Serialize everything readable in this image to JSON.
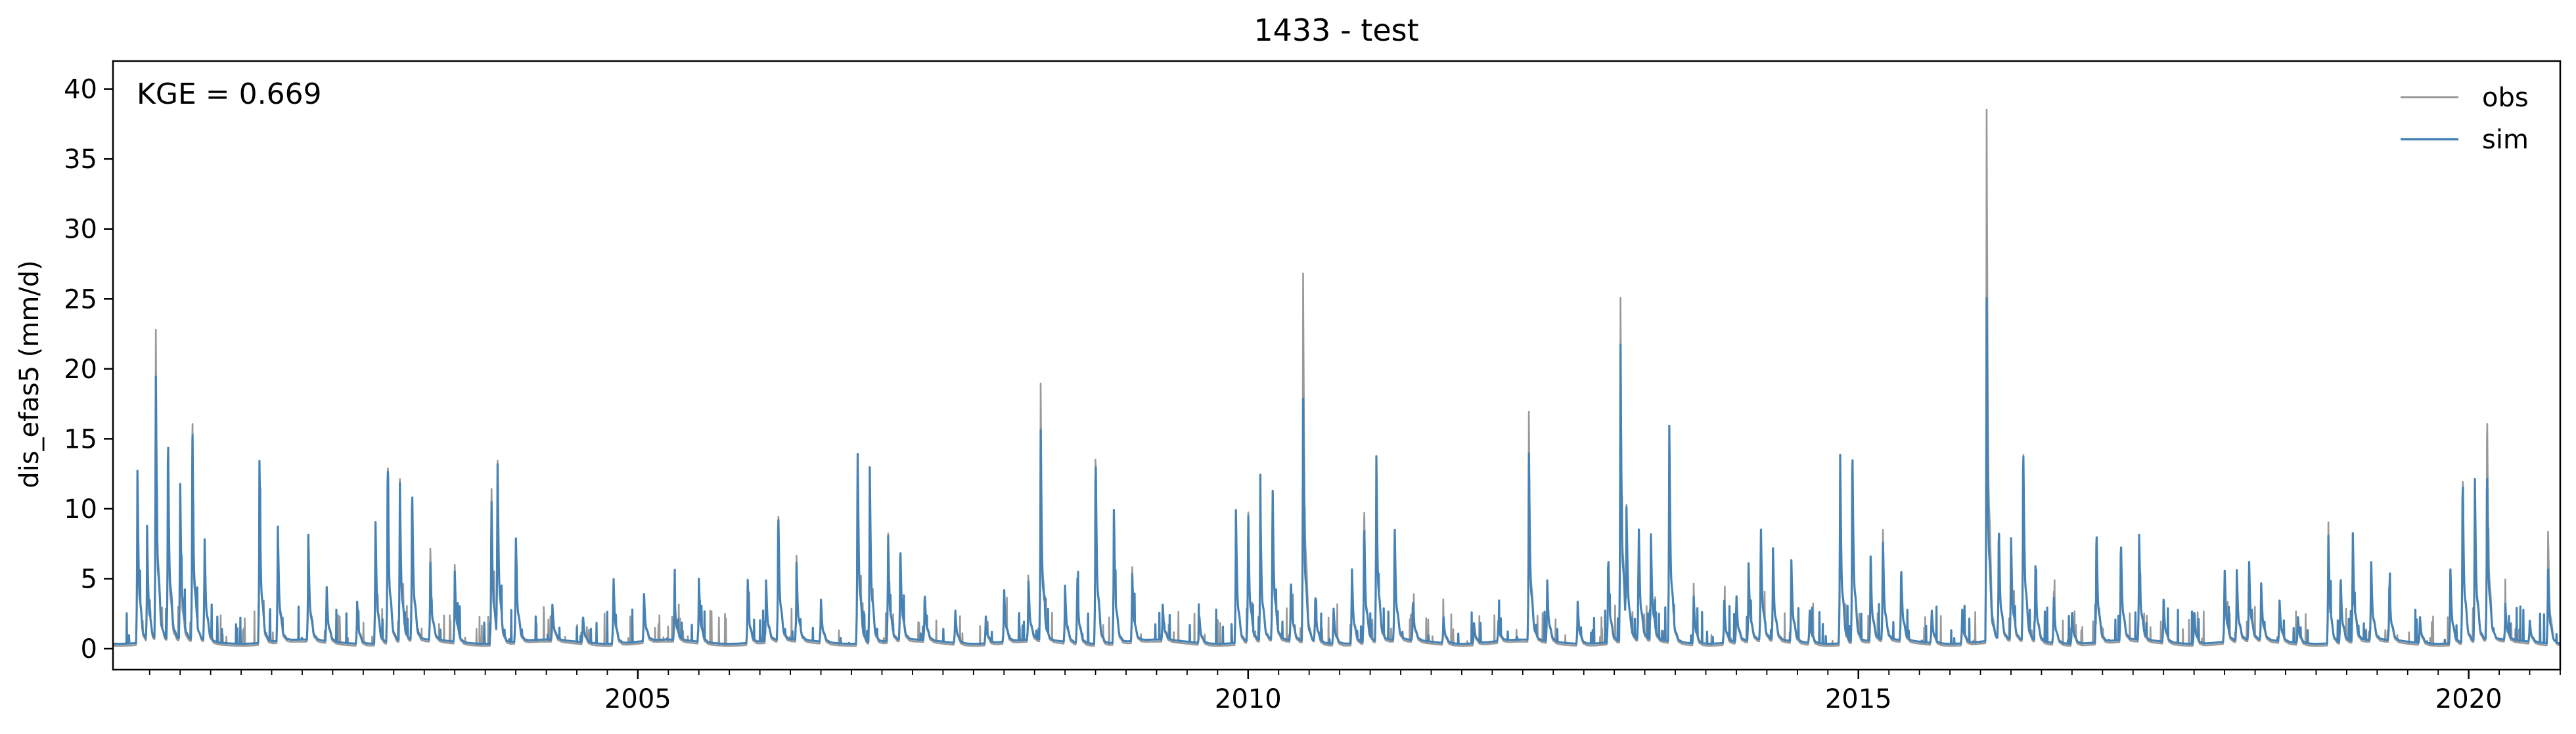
{
  "chart_data": {
    "type": "line",
    "title": "1433 - test",
    "xlabel": "",
    "ylabel": "dis_efas5 (mm/d)",
    "annotation": "KGE = 0.669",
    "legend_placement": "top-right",
    "grid": false,
    "xlim": [
      2000.7,
      2020.75
    ],
    "ylim": [
      -1.5,
      42
    ],
    "x_ticks": [
      2005,
      2010,
      2015,
      2020
    ],
    "x_tick_labels": [
      "2005",
      "2010",
      "2015",
      "2020"
    ],
    "y_ticks": [
      0,
      5,
      10,
      15,
      20,
      25,
      30,
      35,
      40
    ],
    "y_tick_labels": [
      "0",
      "5",
      "10",
      "15",
      "20",
      "25",
      "30",
      "35",
      "40"
    ],
    "base_flow": 0.5,
    "series": [
      {
        "name": "obs",
        "color": "#999999",
        "peaks": [
          [
            2000.9,
            12.5
          ],
          [
            2000.98,
            8
          ],
          [
            2001.05,
            23.5
          ],
          [
            2001.15,
            13
          ],
          [
            2001.25,
            9
          ],
          [
            2001.35,
            18
          ],
          [
            2001.45,
            8
          ],
          [
            2001.9,
            13.2
          ],
          [
            2002.05,
            8.5
          ],
          [
            2002.3,
            7.5
          ],
          [
            2002.45,
            4.5
          ],
          [
            2002.7,
            3.5
          ],
          [
            2002.85,
            9
          ],
          [
            2002.95,
            14.5
          ],
          [
            2003.05,
            12.5
          ],
          [
            2003.15,
            11.5
          ],
          [
            2003.3,
            7
          ],
          [
            2003.5,
            6
          ],
          [
            2003.8,
            12.5
          ],
          [
            2003.85,
            13.5
          ],
          [
            2004.0,
            8.5
          ],
          [
            2004.3,
            3
          ],
          [
            2004.55,
            2.5
          ],
          [
            2004.8,
            5.5
          ],
          [
            2005.05,
            4
          ],
          [
            2005.3,
            4
          ],
          [
            2005.5,
            5
          ],
          [
            2005.9,
            5
          ],
          [
            2006.05,
            5
          ],
          [
            2006.15,
            10.5
          ],
          [
            2006.3,
            6.5
          ],
          [
            2006.5,
            3.5
          ],
          [
            2006.8,
            15
          ],
          [
            2006.9,
            13
          ],
          [
            2007.05,
            8.5
          ],
          [
            2007.15,
            7
          ],
          [
            2007.35,
            4
          ],
          [
            2007.6,
            3
          ],
          [
            2007.85,
            2.5
          ],
          [
            2008.0,
            4.5
          ],
          [
            2008.2,
            5
          ],
          [
            2008.3,
            18.8
          ],
          [
            2008.5,
            4.5
          ],
          [
            2008.6,
            5.5
          ],
          [
            2008.75,
            14.5
          ],
          [
            2008.9,
            10
          ],
          [
            2009.05,
            6
          ],
          [
            2009.3,
            3
          ],
          [
            2009.6,
            2.5
          ],
          [
            2009.9,
            10
          ],
          [
            2010.0,
            10.5
          ],
          [
            2010.1,
            11
          ],
          [
            2010.2,
            12
          ],
          [
            2010.35,
            5
          ],
          [
            2010.45,
            27.8
          ],
          [
            2010.55,
            4
          ],
          [
            2010.7,
            3
          ],
          [
            2010.85,
            6
          ],
          [
            2010.95,
            11
          ],
          [
            2011.05,
            14
          ],
          [
            2011.2,
            9
          ],
          [
            2011.35,
            3.5
          ],
          [
            2011.6,
            2.5
          ],
          [
            2011.85,
            2
          ],
          [
            2012.05,
            2
          ],
          [
            2012.3,
            16.8
          ],
          [
            2012.45,
            5
          ],
          [
            2012.7,
            3.5
          ],
          [
            2012.95,
            7
          ],
          [
            2013.05,
            26
          ],
          [
            2013.1,
            9
          ],
          [
            2013.2,
            9
          ],
          [
            2013.3,
            8
          ],
          [
            2013.45,
            16.5
          ],
          [
            2013.65,
            4
          ],
          [
            2013.9,
            3.5
          ],
          [
            2014.0,
            4
          ],
          [
            2014.1,
            6
          ],
          [
            2014.2,
            9
          ],
          [
            2014.3,
            7
          ],
          [
            2014.45,
            6.5
          ],
          [
            2014.6,
            3
          ],
          [
            2014.85,
            14
          ],
          [
            2014.95,
            15
          ],
          [
            2015.1,
            6.5
          ],
          [
            2015.2,
            9
          ],
          [
            2015.35,
            6
          ],
          [
            2015.6,
            3
          ],
          [
            2015.85,
            3
          ],
          [
            2016.05,
            40
          ],
          [
            2016.15,
            9
          ],
          [
            2016.25,
            8
          ],
          [
            2016.35,
            15.5
          ],
          [
            2016.45,
            6
          ],
          [
            2016.6,
            4.5
          ],
          [
            2016.75,
            3
          ],
          [
            2016.95,
            9
          ],
          [
            2017.15,
            8
          ],
          [
            2017.3,
            8
          ],
          [
            2017.5,
            3.5
          ],
          [
            2017.75,
            3
          ],
          [
            2018.0,
            6
          ],
          [
            2018.1,
            5.5
          ],
          [
            2018.2,
            6.5
          ],
          [
            2018.3,
            4.5
          ],
          [
            2018.45,
            3.5
          ],
          [
            2018.6,
            2.5
          ],
          [
            2018.85,
            9.5
          ],
          [
            2018.95,
            5.5
          ],
          [
            2019.05,
            8.5
          ],
          [
            2019.2,
            6.5
          ],
          [
            2019.35,
            5
          ],
          [
            2019.6,
            2.5
          ],
          [
            2019.85,
            6
          ],
          [
            2019.95,
            13.5
          ],
          [
            2020.05,
            12
          ],
          [
            2020.15,
            18
          ],
          [
            2020.3,
            3
          ],
          [
            2020.5,
            2
          ],
          [
            2020.65,
            8.8
          ]
        ]
      },
      {
        "name": "sim",
        "color": "#4682b4",
        "peaks": [
          [
            2000.9,
            12.8
          ],
          [
            2000.98,
            8
          ],
          [
            2001.05,
            20
          ],
          [
            2001.15,
            16
          ],
          [
            2001.25,
            12
          ],
          [
            2001.35,
            15
          ],
          [
            2001.45,
            8
          ],
          [
            2001.9,
            13.5
          ],
          [
            2002.05,
            9
          ],
          [
            2002.3,
            8
          ],
          [
            2002.45,
            4.5
          ],
          [
            2002.7,
            3.5
          ],
          [
            2002.85,
            9.5
          ],
          [
            2002.95,
            14.3
          ],
          [
            2003.05,
            12.2
          ],
          [
            2003.15,
            12
          ],
          [
            2003.3,
            6
          ],
          [
            2003.5,
            5.5
          ],
          [
            2003.8,
            11.5
          ],
          [
            2003.85,
            13.3
          ],
          [
            2004.0,
            8.5
          ],
          [
            2004.3,
            3
          ],
          [
            2004.55,
            2.5
          ],
          [
            2004.8,
            5.5
          ],
          [
            2005.05,
            4
          ],
          [
            2005.3,
            4
          ],
          [
            2005.5,
            5
          ],
          [
            2005.9,
            5
          ],
          [
            2006.05,
            5
          ],
          [
            2006.15,
            10.2
          ],
          [
            2006.3,
            6
          ],
          [
            2006.5,
            3.5
          ],
          [
            2006.8,
            15.2
          ],
          [
            2006.9,
            13
          ],
          [
            2007.05,
            8.3
          ],
          [
            2007.15,
            7.5
          ],
          [
            2007.35,
            4
          ],
          [
            2007.6,
            3
          ],
          [
            2007.85,
            2.5
          ],
          [
            2008.0,
            4.5
          ],
          [
            2008.2,
            5
          ],
          [
            2008.3,
            15.5
          ],
          [
            2008.5,
            4.5
          ],
          [
            2008.6,
            5.5
          ],
          [
            2008.75,
            14.8
          ],
          [
            2008.9,
            10
          ],
          [
            2009.05,
            5.5
          ],
          [
            2009.3,
            3
          ],
          [
            2009.6,
            2.5
          ],
          [
            2009.9,
            10
          ],
          [
            2010.0,
            10.2
          ],
          [
            2010.1,
            10.5
          ],
          [
            2010.2,
            12
          ],
          [
            2010.35,
            5
          ],
          [
            2010.45,
            18.5
          ],
          [
            2010.55,
            4
          ],
          [
            2010.7,
            3
          ],
          [
            2010.85,
            6
          ],
          [
            2010.95,
            9.5
          ],
          [
            2011.05,
            14.2
          ],
          [
            2011.2,
            9
          ],
          [
            2011.35,
            3.5
          ],
          [
            2011.6,
            2.5
          ],
          [
            2011.85,
            2
          ],
          [
            2012.05,
            2
          ],
          [
            2012.3,
            13.8
          ],
          [
            2012.45,
            5
          ],
          [
            2012.7,
            3.5
          ],
          [
            2012.95,
            7
          ],
          [
            2013.05,
            22.5
          ],
          [
            2013.1,
            9
          ],
          [
            2013.2,
            9
          ],
          [
            2013.3,
            8
          ],
          [
            2013.45,
            16.5
          ],
          [
            2013.65,
            4
          ],
          [
            2013.9,
            3.5
          ],
          [
            2014.0,
            4
          ],
          [
            2014.1,
            6
          ],
          [
            2014.2,
            9
          ],
          [
            2014.3,
            7
          ],
          [
            2014.45,
            6.5
          ],
          [
            2014.6,
            3
          ],
          [
            2014.85,
            14.5
          ],
          [
            2014.95,
            15.2
          ],
          [
            2015.1,
            6.5
          ],
          [
            2015.2,
            8
          ],
          [
            2015.35,
            6
          ],
          [
            2015.6,
            3
          ],
          [
            2015.85,
            3
          ],
          [
            2016.05,
            26
          ],
          [
            2016.15,
            9
          ],
          [
            2016.25,
            8
          ],
          [
            2016.35,
            15.3
          ],
          [
            2016.45,
            6
          ],
          [
            2016.6,
            4
          ],
          [
            2016.75,
            3
          ],
          [
            2016.95,
            9
          ],
          [
            2017.15,
            8
          ],
          [
            2017.3,
            8
          ],
          [
            2017.5,
            3.5
          ],
          [
            2017.75,
            3
          ],
          [
            2018.0,
            6
          ],
          [
            2018.1,
            5.5
          ],
          [
            2018.2,
            6.5
          ],
          [
            2018.3,
            4.5
          ],
          [
            2018.45,
            3.5
          ],
          [
            2018.6,
            2.5
          ],
          [
            2018.85,
            8.5
          ],
          [
            2018.95,
            5.5
          ],
          [
            2019.05,
            8.5
          ],
          [
            2019.2,
            6.5
          ],
          [
            2019.35,
            5
          ],
          [
            2019.6,
            2.5
          ],
          [
            2019.85,
            6
          ],
          [
            2019.95,
            13
          ],
          [
            2020.05,
            12.5
          ],
          [
            2020.15,
            13.5
          ],
          [
            2020.3,
            3
          ],
          [
            2020.5,
            2
          ],
          [
            2020.65,
            6
          ]
        ]
      }
    ]
  }
}
